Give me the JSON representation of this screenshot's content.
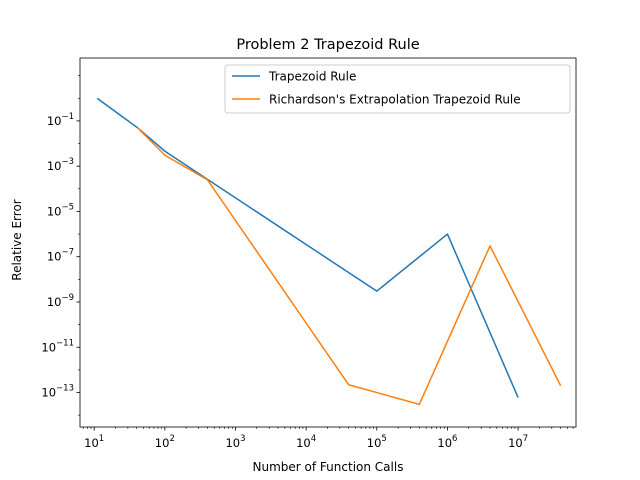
{
  "chart_data": {
    "type": "line",
    "title": "Problem 2 Trapezoid Rule",
    "xlabel": "Number of Function Calls",
    "ylabel": "Relative Error",
    "xscale": "log",
    "yscale": "log",
    "xlim": [
      6.3,
      66000000
    ],
    "ylim": [
      3e-15,
      60
    ],
    "grid": false,
    "legend_position": "top-right",
    "x_ticks": [
      {
        "value": 10,
        "base": "10",
        "exp": "1"
      },
      {
        "value": 100,
        "base": "10",
        "exp": "2"
      },
      {
        "value": 1000,
        "base": "10",
        "exp": "3"
      },
      {
        "value": 10000,
        "base": "10",
        "exp": "4"
      },
      {
        "value": 100000,
        "base": "10",
        "exp": "5"
      },
      {
        "value": 1000000,
        "base": "10",
        "exp": "6"
      },
      {
        "value": 10000000,
        "base": "10",
        "exp": "7"
      }
    ],
    "y_ticks": [
      {
        "value": 0.1,
        "base": "10",
        "exp": "−1"
      },
      {
        "value": 0.001,
        "base": "10",
        "exp": "−3"
      },
      {
        "value": 1e-05,
        "base": "10",
        "exp": "−5"
      },
      {
        "value": 1e-07,
        "base": "10",
        "exp": "−7"
      },
      {
        "value": 1e-09,
        "base": "10",
        "exp": "−9"
      },
      {
        "value": 1e-11,
        "base": "10",
        "exp": "−11"
      },
      {
        "value": 1e-13,
        "base": "10",
        "exp": "−13"
      }
    ],
    "series": [
      {
        "name": "Trapezoid Rule",
        "color": "#1f77b4",
        "x": [
          11,
          41,
          101,
          100001,
          1000001,
          10000001
        ],
        "y": [
          1.0,
          0.05,
          0.0045,
          3e-09,
          1e-06,
          6e-14
        ]
      },
      {
        "name": "Richardson's Extrapolation Trapezoid Rule",
        "color": "#ff7f0e",
        "x": [
          41,
          101,
          401,
          40001,
          400001,
          4000001,
          40000001
        ],
        "y": [
          0.05,
          0.003,
          0.00025,
          2.2e-13,
          3e-14,
          3e-07,
          2e-13
        ]
      }
    ]
  }
}
